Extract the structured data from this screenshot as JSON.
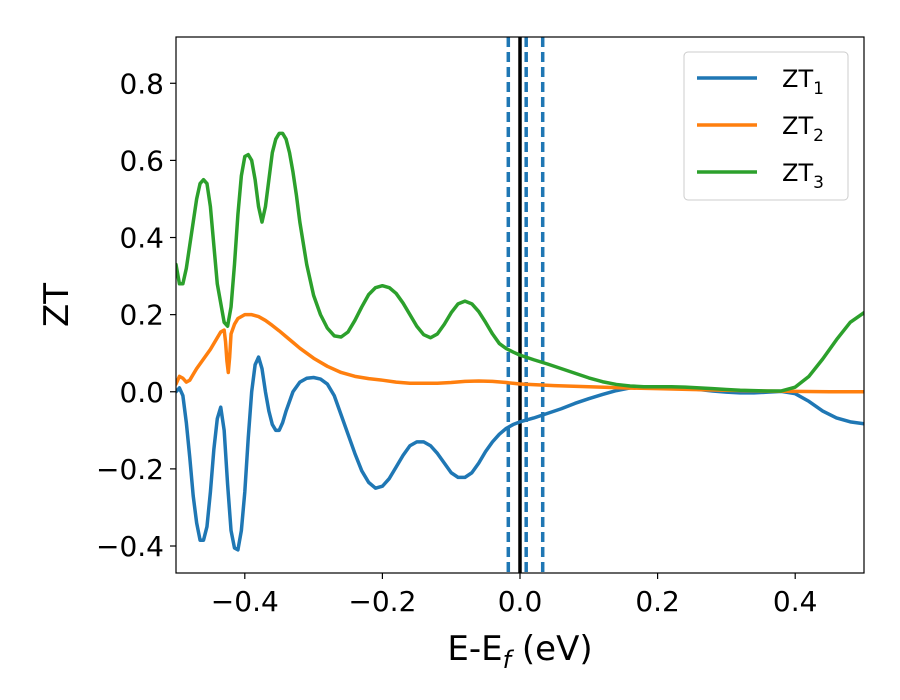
{
  "chart_data": {
    "type": "line",
    "xlabel": {
      "main": "E-E",
      "sub": "f",
      "unit": " (eV)"
    },
    "ylabel": "ZT",
    "xlim": [
      -0.5,
      0.5
    ],
    "ylim": [
      -0.47,
      0.92
    ],
    "x_ticks": [
      -0.4,
      -0.2,
      0.0,
      0.2,
      0.4
    ],
    "x_tick_labels": [
      "−0.4",
      "−0.2",
      "0.0",
      "0.2",
      "0.4"
    ],
    "y_ticks": [
      -0.4,
      -0.2,
      0.0,
      0.2,
      0.4,
      0.6,
      0.8
    ],
    "y_tick_labels": [
      "−0.4",
      "−0.2",
      "0.0",
      "0.2",
      "0.4",
      "0.6",
      "0.8"
    ],
    "grid": false,
    "legend_position": "top-right",
    "vertical_lines": [
      {
        "x": 0.0,
        "style": "solid",
        "color": "#000000"
      },
      {
        "x": -0.017,
        "style": "dashed",
        "color": "#1f77b4"
      },
      {
        "x": 0.009,
        "style": "dashed",
        "color": "#1f77b4"
      },
      {
        "x": 0.033,
        "style": "dashed",
        "color": "#1f77b4"
      }
    ],
    "series": [
      {
        "name": {
          "main": "ZT",
          "sub": "1"
        },
        "color": "#1f77b4",
        "points": [
          [
            -0.5,
            0.0
          ],
          [
            -0.495,
            0.01
          ],
          [
            -0.49,
            -0.01
          ],
          [
            -0.485,
            -0.08
          ],
          [
            -0.48,
            -0.17
          ],
          [
            -0.475,
            -0.27
          ],
          [
            -0.47,
            -0.34
          ],
          [
            -0.465,
            -0.385
          ],
          [
            -0.46,
            -0.385
          ],
          [
            -0.455,
            -0.35
          ],
          [
            -0.45,
            -0.26
          ],
          [
            -0.445,
            -0.15
          ],
          [
            -0.44,
            -0.07
          ],
          [
            -0.435,
            -0.04
          ],
          [
            -0.43,
            -0.1
          ],
          [
            -0.425,
            -0.24
          ],
          [
            -0.42,
            -0.36
          ],
          [
            -0.415,
            -0.405
          ],
          [
            -0.41,
            -0.41
          ],
          [
            -0.405,
            -0.36
          ],
          [
            -0.4,
            -0.26
          ],
          [
            -0.395,
            -0.12
          ],
          [
            -0.39,
            0.0
          ],
          [
            -0.385,
            0.07
          ],
          [
            -0.38,
            0.09
          ],
          [
            -0.375,
            0.06
          ],
          [
            -0.37,
            0.0
          ],
          [
            -0.365,
            -0.05
          ],
          [
            -0.36,
            -0.085
          ],
          [
            -0.355,
            -0.1
          ],
          [
            -0.35,
            -0.1
          ],
          [
            -0.345,
            -0.08
          ],
          [
            -0.34,
            -0.05
          ],
          [
            -0.33,
            0.0
          ],
          [
            -0.32,
            0.025
          ],
          [
            -0.31,
            0.035
          ],
          [
            -0.3,
            0.037
          ],
          [
            -0.29,
            0.033
          ],
          [
            -0.28,
            0.02
          ],
          [
            -0.27,
            -0.01
          ],
          [
            -0.26,
            -0.06
          ],
          [
            -0.25,
            -0.11
          ],
          [
            -0.24,
            -0.16
          ],
          [
            -0.23,
            -0.205
          ],
          [
            -0.22,
            -0.235
          ],
          [
            -0.21,
            -0.25
          ],
          [
            -0.2,
            -0.245
          ],
          [
            -0.19,
            -0.225
          ],
          [
            -0.18,
            -0.195
          ],
          [
            -0.17,
            -0.165
          ],
          [
            -0.16,
            -0.14
          ],
          [
            -0.15,
            -0.13
          ],
          [
            -0.14,
            -0.13
          ],
          [
            -0.13,
            -0.14
          ],
          [
            -0.12,
            -0.16
          ],
          [
            -0.11,
            -0.185
          ],
          [
            -0.1,
            -0.21
          ],
          [
            -0.09,
            -0.222
          ],
          [
            -0.08,
            -0.222
          ],
          [
            -0.07,
            -0.21
          ],
          [
            -0.06,
            -0.185
          ],
          [
            -0.05,
            -0.155
          ],
          [
            -0.04,
            -0.13
          ],
          [
            -0.03,
            -0.11
          ],
          [
            -0.02,
            -0.095
          ],
          [
            -0.01,
            -0.085
          ],
          [
            0.0,
            -0.078
          ],
          [
            0.02,
            -0.068
          ],
          [
            0.04,
            -0.056
          ],
          [
            0.06,
            -0.044
          ],
          [
            0.08,
            -0.03
          ],
          [
            0.1,
            -0.018
          ],
          [
            0.12,
            -0.007
          ],
          [
            0.14,
            0.003
          ],
          [
            0.16,
            0.01
          ],
          [
            0.18,
            0.013
          ],
          [
            0.2,
            0.013
          ],
          [
            0.22,
            0.012
          ],
          [
            0.24,
            0.01
          ],
          [
            0.26,
            0.006
          ],
          [
            0.28,
            0.002
          ],
          [
            0.3,
            -0.001
          ],
          [
            0.32,
            -0.003
          ],
          [
            0.34,
            -0.003
          ],
          [
            0.36,
            -0.001
          ],
          [
            0.38,
            0.001
          ],
          [
            0.4,
            -0.005
          ],
          [
            0.42,
            -0.025
          ],
          [
            0.44,
            -0.05
          ],
          [
            0.46,
            -0.068
          ],
          [
            0.48,
            -0.078
          ],
          [
            0.5,
            -0.083
          ]
        ]
      },
      {
        "name": {
          "main": "ZT",
          "sub": "2"
        },
        "color": "#ff7f0e",
        "points": [
          [
            -0.5,
            0.02
          ],
          [
            -0.495,
            0.04
          ],
          [
            -0.49,
            0.035
          ],
          [
            -0.485,
            0.025
          ],
          [
            -0.48,
            0.03
          ],
          [
            -0.475,
            0.045
          ],
          [
            -0.47,
            0.06
          ],
          [
            -0.46,
            0.085
          ],
          [
            -0.45,
            0.11
          ],
          [
            -0.44,
            0.14
          ],
          [
            -0.435,
            0.155
          ],
          [
            -0.43,
            0.16
          ],
          [
            -0.428,
            0.13
          ],
          [
            -0.426,
            0.08
          ],
          [
            -0.424,
            0.05
          ],
          [
            -0.422,
            0.09
          ],
          [
            -0.42,
            0.15
          ],
          [
            -0.415,
            0.175
          ],
          [
            -0.41,
            0.19
          ],
          [
            -0.4,
            0.2
          ],
          [
            -0.39,
            0.2
          ],
          [
            -0.38,
            0.195
          ],
          [
            -0.37,
            0.185
          ],
          [
            -0.36,
            0.172
          ],
          [
            -0.35,
            0.158
          ],
          [
            -0.34,
            0.143
          ],
          [
            -0.33,
            0.128
          ],
          [
            -0.32,
            0.113
          ],
          [
            -0.3,
            0.087
          ],
          [
            -0.28,
            0.066
          ],
          [
            -0.26,
            0.05
          ],
          [
            -0.24,
            0.04
          ],
          [
            -0.22,
            0.034
          ],
          [
            -0.2,
            0.03
          ],
          [
            -0.18,
            0.025
          ],
          [
            -0.16,
            0.022
          ],
          [
            -0.14,
            0.022
          ],
          [
            -0.12,
            0.022
          ],
          [
            -0.1,
            0.024
          ],
          [
            -0.08,
            0.027
          ],
          [
            -0.06,
            0.028
          ],
          [
            -0.04,
            0.027
          ],
          [
            -0.02,
            0.024
          ],
          [
            0.0,
            0.02
          ],
          [
            0.05,
            0.016
          ],
          [
            0.1,
            0.013
          ],
          [
            0.15,
            0.01
          ],
          [
            0.2,
            0.008
          ],
          [
            0.25,
            0.006
          ],
          [
            0.3,
            0.004
          ],
          [
            0.35,
            0.002
          ],
          [
            0.4,
            0.001
          ],
          [
            0.45,
            0.0
          ],
          [
            0.5,
            0.0
          ]
        ]
      },
      {
        "name": {
          "main": "ZT",
          "sub": "3"
        },
        "color": "#2ca02c",
        "points": [
          [
            -0.5,
            0.33
          ],
          [
            -0.495,
            0.28
          ],
          [
            -0.49,
            0.28
          ],
          [
            -0.485,
            0.32
          ],
          [
            -0.48,
            0.38
          ],
          [
            -0.475,
            0.44
          ],
          [
            -0.47,
            0.5
          ],
          [
            -0.465,
            0.54
          ],
          [
            -0.46,
            0.55
          ],
          [
            -0.455,
            0.54
          ],
          [
            -0.45,
            0.48
          ],
          [
            -0.445,
            0.38
          ],
          [
            -0.44,
            0.28
          ],
          [
            -0.435,
            0.23
          ],
          [
            -0.43,
            0.18
          ],
          [
            -0.425,
            0.17
          ],
          [
            -0.42,
            0.22
          ],
          [
            -0.415,
            0.33
          ],
          [
            -0.41,
            0.46
          ],
          [
            -0.405,
            0.56
          ],
          [
            -0.4,
            0.61
          ],
          [
            -0.395,
            0.615
          ],
          [
            -0.39,
            0.6
          ],
          [
            -0.385,
            0.55
          ],
          [
            -0.38,
            0.48
          ],
          [
            -0.375,
            0.44
          ],
          [
            -0.37,
            0.48
          ],
          [
            -0.365,
            0.55
          ],
          [
            -0.36,
            0.62
          ],
          [
            -0.355,
            0.655
          ],
          [
            -0.35,
            0.67
          ],
          [
            -0.345,
            0.67
          ],
          [
            -0.34,
            0.655
          ],
          [
            -0.335,
            0.62
          ],
          [
            -0.33,
            0.57
          ],
          [
            -0.325,
            0.51
          ],
          [
            -0.32,
            0.44
          ],
          [
            -0.31,
            0.33
          ],
          [
            -0.3,
            0.25
          ],
          [
            -0.29,
            0.2
          ],
          [
            -0.28,
            0.165
          ],
          [
            -0.27,
            0.145
          ],
          [
            -0.26,
            0.142
          ],
          [
            -0.25,
            0.155
          ],
          [
            -0.24,
            0.185
          ],
          [
            -0.23,
            0.22
          ],
          [
            -0.22,
            0.252
          ],
          [
            -0.21,
            0.27
          ],
          [
            -0.2,
            0.275
          ],
          [
            -0.19,
            0.27
          ],
          [
            -0.18,
            0.255
          ],
          [
            -0.17,
            0.23
          ],
          [
            -0.16,
            0.2
          ],
          [
            -0.15,
            0.17
          ],
          [
            -0.14,
            0.148
          ],
          [
            -0.13,
            0.14
          ],
          [
            -0.12,
            0.15
          ],
          [
            -0.11,
            0.175
          ],
          [
            -0.1,
            0.205
          ],
          [
            -0.09,
            0.228
          ],
          [
            -0.08,
            0.235
          ],
          [
            -0.07,
            0.228
          ],
          [
            -0.06,
            0.208
          ],
          [
            -0.05,
            0.18
          ],
          [
            -0.04,
            0.15
          ],
          [
            -0.03,
            0.125
          ],
          [
            -0.02,
            0.112
          ],
          [
            -0.01,
            0.103
          ],
          [
            0.0,
            0.095
          ],
          [
            0.02,
            0.083
          ],
          [
            0.04,
            0.072
          ],
          [
            0.06,
            0.06
          ],
          [
            0.08,
            0.048
          ],
          [
            0.1,
            0.036
          ],
          [
            0.12,
            0.026
          ],
          [
            0.14,
            0.019
          ],
          [
            0.16,
            0.015
          ],
          [
            0.18,
            0.013
          ],
          [
            0.2,
            0.013
          ],
          [
            0.22,
            0.013
          ],
          [
            0.24,
            0.012
          ],
          [
            0.26,
            0.01
          ],
          [
            0.28,
            0.008
          ],
          [
            0.3,
            0.006
          ],
          [
            0.32,
            0.004
          ],
          [
            0.34,
            0.003
          ],
          [
            0.36,
            0.002
          ],
          [
            0.38,
            0.002
          ],
          [
            0.4,
            0.012
          ],
          [
            0.42,
            0.04
          ],
          [
            0.44,
            0.085
          ],
          [
            0.46,
            0.135
          ],
          [
            0.48,
            0.18
          ],
          [
            0.5,
            0.205
          ]
        ]
      }
    ]
  }
}
